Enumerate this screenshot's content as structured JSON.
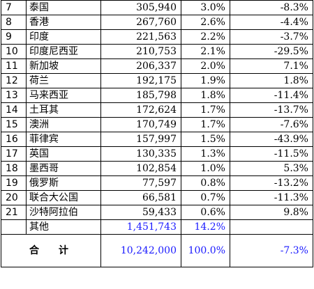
{
  "table": {
    "rows": [
      {
        "rank": "7",
        "country": "泰国",
        "value": "305,940",
        "share": "3.0%",
        "growth": "-8.3%"
      },
      {
        "rank": "8",
        "country": "香港",
        "value": "267,760",
        "share": "2.6%",
        "growth": "-4.4%"
      },
      {
        "rank": "9",
        "country": "印度",
        "value": "221,563",
        "share": "2.2%",
        "growth": "-3.7%"
      },
      {
        "rank": "10",
        "country": "印度尼西亚",
        "value": "210,753",
        "share": "2.1%",
        "growth": "-29.5%"
      },
      {
        "rank": "11",
        "country": "新加坡",
        "value": "206,337",
        "share": "2.0%",
        "growth": "7.1%"
      },
      {
        "rank": "12",
        "country": "荷兰",
        "value": "192,175",
        "share": "1.9%",
        "growth": "1.8%"
      },
      {
        "rank": "13",
        "country": "马来西亚",
        "value": "185,798",
        "share": "1.8%",
        "growth": "-11.4%"
      },
      {
        "rank": "14",
        "country": "土耳其",
        "value": "172,624",
        "share": "1.7%",
        "growth": "-13.7%"
      },
      {
        "rank": "15",
        "country": "澳洲",
        "value": "170,749",
        "share": "1.7%",
        "growth": "-7.6%"
      },
      {
        "rank": "16",
        "country": "菲律宾",
        "value": "157,997",
        "share": "1.5%",
        "growth": "-43.9%"
      },
      {
        "rank": "17",
        "country": "英国",
        "value": "130,335",
        "share": "1.3%",
        "growth": "-11.5%"
      },
      {
        "rank": "18",
        "country": "墨西哥",
        "value": "102,854",
        "share": "1.0%",
        "growth": "5.3%"
      },
      {
        "rank": "19",
        "country": "俄罗斯",
        "value": "77,597",
        "share": "0.8%",
        "growth": "-13.2%"
      },
      {
        "rank": "20",
        "country": "联合大公国",
        "value": "66,581",
        "share": "0.7%",
        "growth": "-11.3%"
      },
      {
        "rank": "21",
        "country": "沙特阿拉伯",
        "value": "59,433",
        "share": "0.6%",
        "growth": "9.8%"
      }
    ],
    "others": {
      "label": "其他",
      "value": "1,451,743",
      "share": "14.2%"
    },
    "total": {
      "label": "合计",
      "value": "10,242,000",
      "share": "100.0%",
      "growth": "-7.3%"
    }
  },
  "colors": {
    "blue_text": "#1a1aff",
    "border": "#000000"
  }
}
